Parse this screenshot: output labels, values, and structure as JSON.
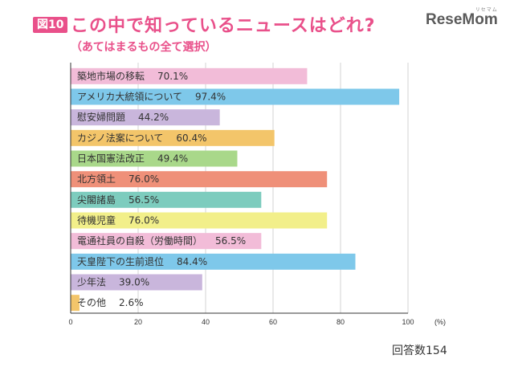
{
  "figure": {
    "badge": "図10",
    "title": "この中で知っているニュースはどれ?",
    "subtitle": "（あてはまるもの全て選択）",
    "logo": "ReseMom",
    "logo_kana": "リセマム",
    "respondents": "回答数154"
  },
  "chart_data": {
    "type": "bar",
    "orientation": "horizontal",
    "title": "この中で知っているニュースはどれ?",
    "subtitle": "（あてはまるもの全て選択）",
    "xlabel": "",
    "ylabel": "",
    "unit": "(%)",
    "xlim": [
      0,
      100
    ],
    "xticks": [
      0,
      20,
      40,
      60,
      80,
      100
    ],
    "grid": true,
    "categories": [
      "築地市場の移転",
      "アメリカ大統領について",
      "慰安婦問題",
      "カジノ法案について",
      "日本国憲法改正",
      "北方領土",
      "尖閣諸島",
      "待機児童",
      "電通社員の自殺（労働時間）",
      "天皇陛下の生前退位",
      "少年法",
      "その他"
    ],
    "values": [
      70.1,
      97.4,
      44.2,
      60.4,
      49.4,
      76.0,
      56.5,
      76.0,
      56.5,
      84.4,
      39.0,
      2.6
    ],
    "value_labels": [
      "70.1%",
      "97.4%",
      "44.2%",
      "60.4%",
      "49.4%",
      "76.0%",
      "56.5%",
      "76.0%",
      "56.5%",
      "84.4%",
      "39.0%",
      "2.6%"
    ],
    "colors": [
      "#f2bcd8",
      "#7ec8ea",
      "#c9b6dc",
      "#f3c56a",
      "#a9d88a",
      "#ef9079",
      "#7dccbe",
      "#f2ef8a",
      "#f2bcd8",
      "#7ec8ea",
      "#c9b6dc",
      "#f3c56a"
    ]
  }
}
